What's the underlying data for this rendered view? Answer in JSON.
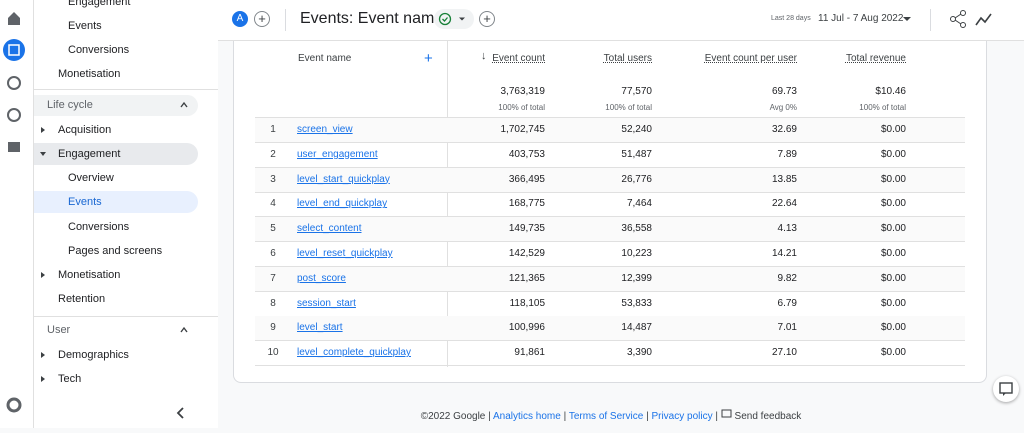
{
  "sidebar": {
    "top_items": [
      "Engagement",
      "Events",
      "Conversions",
      "Monetisation"
    ],
    "lifecycle": {
      "title": "Life cycle",
      "items": [
        "Acquisition",
        "Engagement",
        "Overview",
        "Events",
        "Conversions",
        "Pages and screens",
        "Monetisation",
        "Retention"
      ]
    },
    "user": {
      "title": "User",
      "items": [
        "Demographics",
        "Tech"
      ]
    }
  },
  "header": {
    "property_badge": "A",
    "title": "Events: Event name",
    "date_label": "Last 28 days",
    "date_range": "11 Jul - 7 Aug 2022"
  },
  "table": {
    "columns": [
      "Event name",
      "Event count",
      "Total users",
      "Event count per user",
      "Total revenue"
    ],
    "totals": [
      "3,763,319",
      "77,570",
      "69.73",
      "$10.46"
    ],
    "totals_notes": [
      "100% of total",
      "100% of total",
      "Avg 0%",
      "100% of total"
    ],
    "rows": [
      [
        "1",
        "screen_view",
        "1,702,745",
        "52,240",
        "32.69",
        "$0.00"
      ],
      [
        "2",
        "user_engagement",
        "403,753",
        "51,487",
        "7.89",
        "$0.00"
      ],
      [
        "3",
        "level_start_quickplay",
        "366,495",
        "26,776",
        "13.85",
        "$0.00"
      ],
      [
        "4",
        "level_end_quickplay",
        "168,775",
        "7,464",
        "22.64",
        "$0.00"
      ],
      [
        "5",
        "select_content",
        "149,735",
        "36,558",
        "4.13",
        "$0.00"
      ],
      [
        "6",
        "level_reset_quickplay",
        "142,529",
        "10,223",
        "14.21",
        "$0.00"
      ],
      [
        "7",
        "post_score",
        "121,365",
        "12,399",
        "9.82",
        "$0.00"
      ],
      [
        "8",
        "session_start",
        "118,105",
        "53,833",
        "6.79",
        "$0.00"
      ],
      [
        "9",
        "level_start",
        "100,996",
        "14,487",
        "7.01",
        "$0.00"
      ],
      [
        "10",
        "level_complete_quickplay",
        "91,861",
        "3,390",
        "27.10",
        "$0.00"
      ]
    ]
  },
  "footer": {
    "copyright": "©2022 Google",
    "separator": "|",
    "links": [
      "Analytics home",
      "Terms of Service",
      "Privacy policy"
    ],
    "feedback": "Send feedback"
  }
}
